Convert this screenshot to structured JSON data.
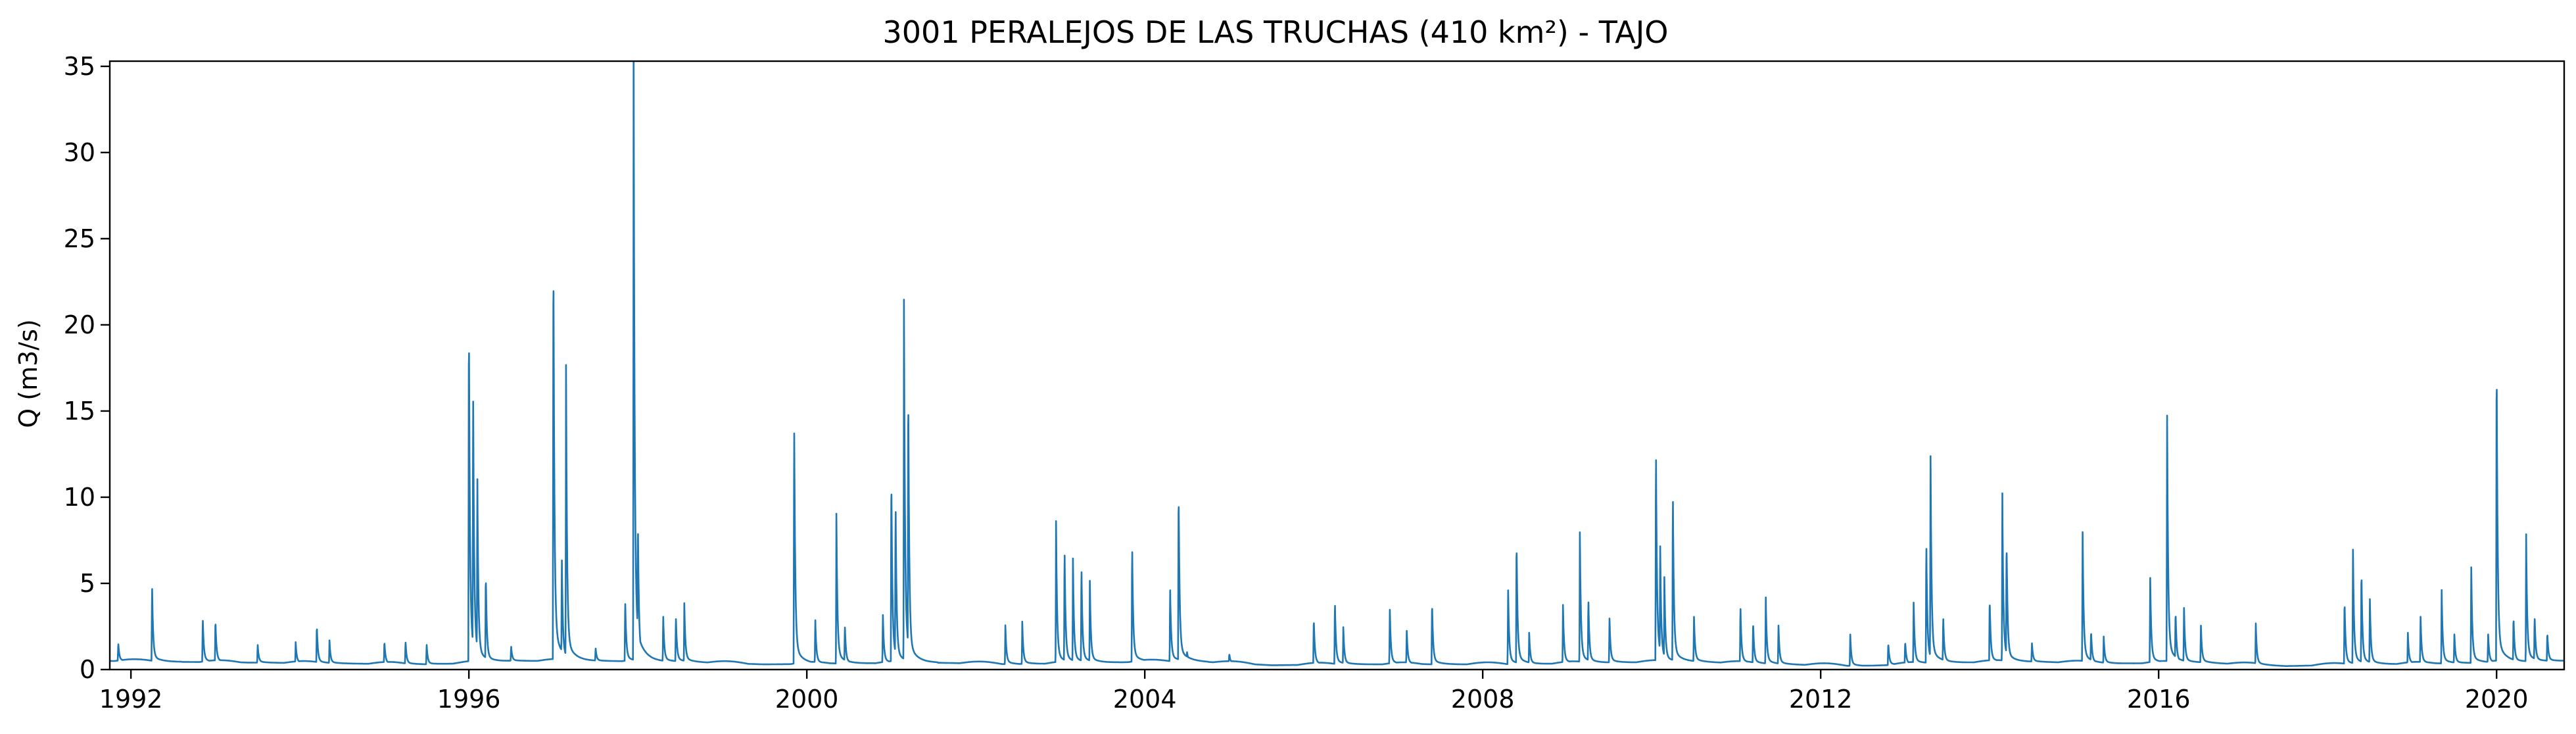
{
  "chart_data": {
    "type": "line",
    "title": "3001 PERALEJOS DE LAS TRUCHAS (410 km²) - TAJO",
    "xlabel": "",
    "ylabel": "Q (m3/s)",
    "xlim": [
      1991.75,
      2020.8
    ],
    "ylim": [
      0,
      35.3
    ],
    "xticks": [
      1992,
      1996,
      2000,
      2004,
      2008,
      2012,
      2016,
      2020
    ],
    "yticks": [
      0,
      5,
      10,
      15,
      20,
      25,
      30,
      35
    ],
    "grid": false,
    "line_color": "#1f77b4",
    "baseflow": [
      [
        1991.75,
        0.5
      ],
      [
        1992.5,
        0.45
      ],
      [
        1993.5,
        0.4
      ],
      [
        1994.5,
        0.35
      ],
      [
        1995.5,
        0.3
      ],
      [
        1995.9,
        0.35
      ],
      [
        1996.5,
        0.5
      ],
      [
        1997.5,
        0.5
      ],
      [
        1998.5,
        0.45
      ],
      [
        1999.5,
        0.3
      ],
      [
        2000.5,
        0.35
      ],
      [
        2001.5,
        0.4
      ],
      [
        2002.5,
        0.3
      ],
      [
        2003.5,
        0.4
      ],
      [
        2004.5,
        0.5
      ],
      [
        2005.5,
        0.25
      ],
      [
        2006.5,
        0.3
      ],
      [
        2007.5,
        0.3
      ],
      [
        2008.5,
        0.3
      ],
      [
        2009.5,
        0.4
      ],
      [
        2010.5,
        0.45
      ],
      [
        2011.5,
        0.3
      ],
      [
        2012.5,
        0.2
      ],
      [
        2013.5,
        0.4
      ],
      [
        2014.5,
        0.45
      ],
      [
        2015.5,
        0.35
      ],
      [
        2016.5,
        0.4
      ],
      [
        2017.5,
        0.2
      ],
      [
        2018.5,
        0.3
      ],
      [
        2019.5,
        0.35
      ],
      [
        2020.8,
        0.5
      ]
    ],
    "peaks": [
      [
        1991.85,
        1.5
      ],
      [
        1992.25,
        4.8
      ],
      [
        1992.85,
        2.9
      ],
      [
        1993.0,
        2.8
      ],
      [
        1993.5,
        1.4
      ],
      [
        1993.95,
        1.5
      ],
      [
        1994.2,
        2.5
      ],
      [
        1994.35,
        1.6
      ],
      [
        1995.0,
        1.6
      ],
      [
        1995.25,
        1.6
      ],
      [
        1995.5,
        1.4
      ],
      [
        1996.0,
        19.9
      ],
      [
        1996.05,
        16.0
      ],
      [
        1996.1,
        10.8
      ],
      [
        1996.2,
        5.4
      ],
      [
        1996.5,
        1.3
      ],
      [
        1997.0,
        23.8
      ],
      [
        1997.1,
        6.2
      ],
      [
        1997.15,
        16.4
      ],
      [
        1997.5,
        1.2
      ],
      [
        1997.85,
        3.9
      ],
      [
        1997.95,
        33.7
      ],
      [
        1998.0,
        8.5
      ],
      [
        1998.3,
        3.0
      ],
      [
        1998.45,
        3.0
      ],
      [
        1998.55,
        3.6
      ],
      [
        1999.85,
        14.1
      ],
      [
        2000.1,
        2.8
      ],
      [
        2000.35,
        8.4
      ],
      [
        2000.45,
        2.5
      ],
      [
        2000.9,
        3.1
      ],
      [
        2001.0,
        11.0
      ],
      [
        2001.05,
        9.4
      ],
      [
        2001.15,
        19.9
      ],
      [
        2001.2,
        16.0
      ],
      [
        2002.35,
        2.4
      ],
      [
        2002.55,
        2.6
      ],
      [
        2002.95,
        8.0
      ],
      [
        2003.05,
        6.8
      ],
      [
        2003.15,
        6.0
      ],
      [
        2003.25,
        5.8
      ],
      [
        2003.35,
        4.8
      ],
      [
        2003.85,
        7.0
      ],
      [
        2004.3,
        4.5
      ],
      [
        2004.4,
        10.2
      ],
      [
        2004.5,
        1.0
      ],
      [
        2005.0,
        0.9
      ],
      [
        2006.0,
        2.9
      ],
      [
        2006.25,
        3.8
      ],
      [
        2006.35,
        2.3
      ],
      [
        2006.9,
        3.4
      ],
      [
        2007.1,
        2.2
      ],
      [
        2007.4,
        3.8
      ],
      [
        2008.3,
        4.5
      ],
      [
        2008.4,
        7.3
      ],
      [
        2008.55,
        2.0
      ],
      [
        2008.95,
        3.5
      ],
      [
        2009.15,
        7.4
      ],
      [
        2009.25,
        4.0
      ],
      [
        2009.5,
        2.9
      ],
      [
        2010.05,
        12.5
      ],
      [
        2010.1,
        7.0
      ],
      [
        2010.15,
        5.0
      ],
      [
        2010.25,
        10.0
      ],
      [
        2010.5,
        3.0
      ],
      [
        2011.05,
        3.6
      ],
      [
        2011.2,
        2.7
      ],
      [
        2011.35,
        3.9
      ],
      [
        2011.5,
        2.5
      ],
      [
        2012.35,
        1.9
      ],
      [
        2012.8,
        1.5
      ],
      [
        2013.0,
        1.6
      ],
      [
        2013.1,
        3.8
      ],
      [
        2013.25,
        7.2
      ],
      [
        2013.3,
        12.1
      ],
      [
        2013.45,
        3.0
      ],
      [
        2014.0,
        4.0
      ],
      [
        2014.15,
        9.5
      ],
      [
        2014.2,
        7.3
      ],
      [
        2014.5,
        1.5
      ],
      [
        2015.1,
        7.8
      ],
      [
        2015.2,
        2.2
      ],
      [
        2015.35,
        1.8
      ],
      [
        2015.9,
        5.2
      ],
      [
        2016.1,
        14.4
      ],
      [
        2016.2,
        3.3
      ],
      [
        2016.3,
        3.5
      ],
      [
        2016.5,
        2.5
      ],
      [
        2017.15,
        2.5
      ],
      [
        2018.2,
        3.9
      ],
      [
        2018.3,
        6.8
      ],
      [
        2018.4,
        5.6
      ],
      [
        2018.5,
        4.0
      ],
      [
        2018.95,
        2.0
      ],
      [
        2019.1,
        3.0
      ],
      [
        2019.35,
        4.3
      ],
      [
        2019.5,
        2.0
      ],
      [
        2019.7,
        5.8
      ],
      [
        2019.9,
        2.0
      ],
      [
        2020.0,
        17.6
      ],
      [
        2020.2,
        3.0
      ],
      [
        2020.35,
        7.3
      ],
      [
        2020.45,
        3.0
      ],
      [
        2020.6,
        2.1
      ]
    ]
  }
}
